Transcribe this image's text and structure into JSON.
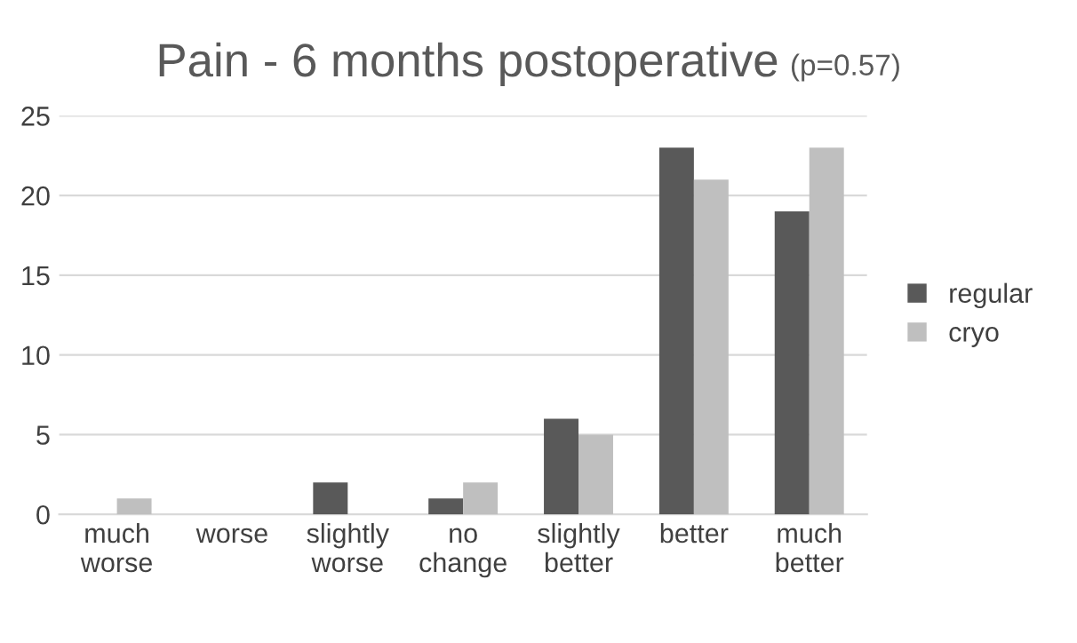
{
  "chart_data": {
    "type": "bar",
    "title": "Pain - 6 months postoperative",
    "subtitle": "(p=0.57)",
    "categories": [
      "much worse",
      "worse",
      "slightly worse",
      "no change",
      "slightly better",
      "better",
      "much better"
    ],
    "series": [
      {
        "name": "regular",
        "color": "#595959",
        "values": [
          0,
          0,
          2,
          1,
          6,
          23,
          19
        ]
      },
      {
        "name": "cryo",
        "color": "#bfbfbf",
        "values": [
          1,
          0,
          0,
          2,
          5,
          21,
          23
        ]
      }
    ],
    "ylim": [
      0,
      25
    ],
    "yticks": [
      0,
      5,
      10,
      15,
      20,
      25
    ],
    "grid": "y",
    "legend": "right"
  }
}
